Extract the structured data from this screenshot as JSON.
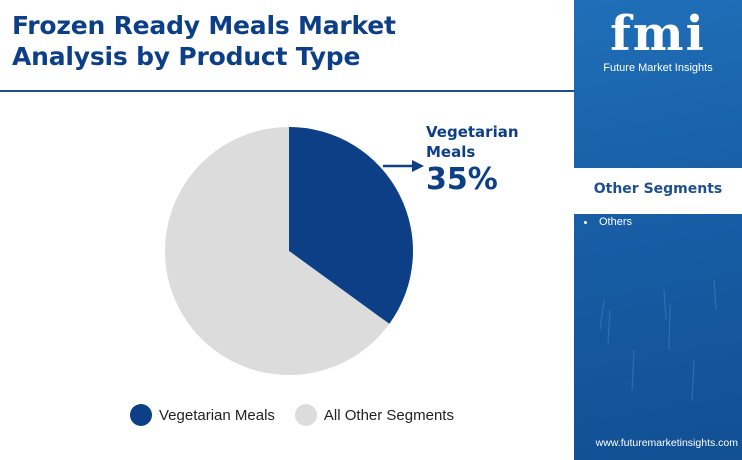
{
  "title": {
    "line1": "Frozen Ready Meals Market",
    "line2": "Analysis by Product Type"
  },
  "chart_data": {
    "type": "pie",
    "categories": [
      "Vegetarian Meals",
      "All Other Segments"
    ],
    "values": [
      35,
      65
    ],
    "unit": "%",
    "colors": [
      "#0d3f87",
      "#dcdcdc"
    ],
    "start_angle_deg": 0,
    "direction": "clockwise",
    "legend_position": "bottom",
    "annotation": {
      "label_line1": "Vegetarian",
      "label_line2": "Meals",
      "value": "35%"
    }
  },
  "sidebar": {
    "logo_mark": "fmi",
    "logo_text": "Future Market Insights",
    "segments_title": "Other Segments",
    "segments": [
      "Others"
    ],
    "website": "www.futuremarketinsights.com"
  },
  "colors": {
    "title": "#0d3f87",
    "sidebar": "#1b63ad",
    "sidebar_box_title": "#1f4f8f"
  }
}
